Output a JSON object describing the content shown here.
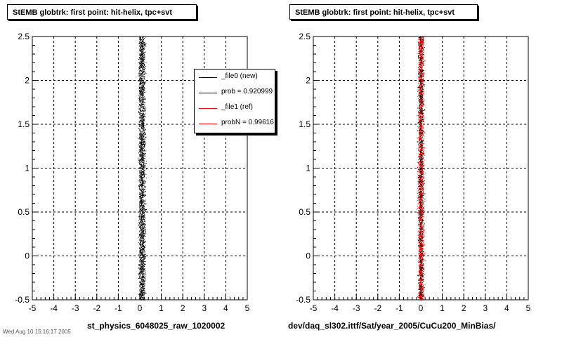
{
  "colors": {
    "new": "#000000",
    "ref": "#ff0000",
    "background": "#ffffff"
  },
  "panels": [
    {
      "title": "StEMB globtrk: first point: hit-helix, tpc+svt",
      "xlabel": "st_physics_6048025_raw_1020002"
    },
    {
      "title": "StEMB globtrk: first point: hit-helix, tpc+svt",
      "xlabel": "dev/daq_sl302.ittf/Sat/year_2005/CuCu200_MinBias/"
    }
  ],
  "legend": {
    "entries": [
      {
        "label": "_file0 (new)",
        "color": "#000000"
      },
      {
        "label": "prob = 0.920999",
        "color": "#000000"
      },
      {
        "label": "_file1 (ref)",
        "color": "#ff0000"
      },
      {
        "label": "probN = 0.99616",
        "color": "#ff0000"
      }
    ]
  },
  "footer_stamp": "Wed Aug 10 15:16:17 2005",
  "chart_data": [
    {
      "type": "scatter",
      "title": "StEMB globtrk: first point: hit-helix, tpc+svt",
      "xlabel": "st_physics_6048025_raw_1020002",
      "ylabel": "",
      "xlim": [
        -5,
        5
      ],
      "ylim": [
        -0.5,
        2.5
      ],
      "xticks": [
        "-5",
        "-4",
        "-3",
        "-2",
        "-1",
        "0",
        "1",
        "2",
        "3",
        "4",
        "5"
      ],
      "yticks": [
        "-0.5",
        "0",
        "0.5",
        "1",
        "1.5",
        "2",
        "2.5"
      ],
      "grid": true,
      "series": [
        {
          "name": "_file0 (new)",
          "color": "#000000",
          "x_center": 0.1,
          "x_halfwidth": 0.22,
          "y_range": [
            -0.5,
            2.5
          ]
        }
      ]
    },
    {
      "type": "scatter",
      "title": "StEMB globtrk: first point: hit-helix, tpc+svt",
      "xlabel": "dev/daq_sl302.ittf/Sat/year_2005/CuCu200_MinBias/",
      "ylabel": "",
      "xlim": [
        -5,
        5
      ],
      "ylim": [
        -0.5,
        2.5
      ],
      "xticks": [
        "-5",
        "-4",
        "-3",
        "-2",
        "-1",
        "0",
        "1",
        "2",
        "3",
        "4",
        "5"
      ],
      "yticks": [
        "-0.5",
        "0",
        "0.5",
        "1",
        "1.5",
        "2",
        "2.5"
      ],
      "grid": true,
      "series": [
        {
          "name": "_file1 (ref)",
          "color": "#ff0000",
          "x_center": 0.0,
          "x_halfwidth": 0.2,
          "y_range": [
            -0.5,
            2.5
          ]
        },
        {
          "name": "_file0 (new)",
          "color": "#000000",
          "x_center": 0.0,
          "x_halfwidth": 0.2,
          "y_range": [
            -0.5,
            2.5
          ],
          "density": 0.35
        }
      ]
    }
  ]
}
